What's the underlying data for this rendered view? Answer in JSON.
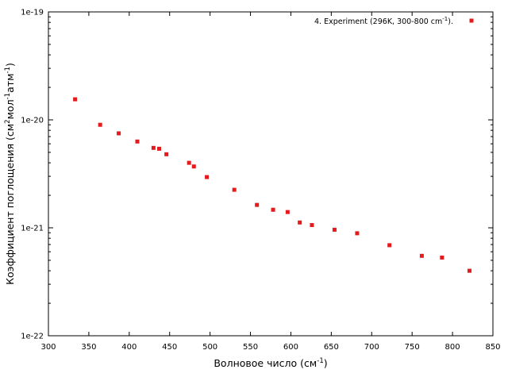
{
  "chart_data": {
    "type": "scatter",
    "title": "",
    "xlabel": "Волновое число (см",
    "xlabel_sup": "-1",
    "xlabel_tail": ")",
    "ylabel_parts": [
      "Коэффициент поглощения (см",
      "2",
      "мол",
      "-1",
      "атм",
      "-1",
      ")"
    ],
    "xlim": [
      300,
      850
    ],
    "ylim": [
      1e-22,
      1e-19
    ],
    "yscale": "log",
    "x_ticks": [
      "300",
      "350",
      "400",
      "450",
      "500",
      "550",
      "600",
      "650",
      "700",
      "750",
      "800",
      "850"
    ],
    "y_ticks": [
      "1e-22",
      "1e-21",
      "1e-20",
      "1e-19"
    ],
    "grid": false,
    "legend_position": "top-right",
    "series": [
      {
        "name": "4. Experiment (296K, 300-800 cm",
        "name_sup": "-1",
        "name_tail": ").",
        "color": "#e41a1c",
        "marker": "square",
        "x": [
          333,
          364,
          387,
          410,
          430,
          437,
          446,
          474,
          480,
          496,
          530,
          558,
          578,
          596,
          611,
          626,
          654,
          682,
          722,
          762,
          787,
          821
        ],
        "y": [
          1.55e-20,
          9e-21,
          7.5e-21,
          6.3e-21,
          5.5e-21,
          5.4e-21,
          4.8e-21,
          4e-21,
          3.7e-21,
          2.95e-21,
          2.25e-21,
          1.63e-21,
          1.47e-21,
          1.4e-21,
          1.12e-21,
          1.06e-21,
          9.6e-22,
          8.9e-22,
          6.9e-22,
          5.5e-22,
          5.3e-22,
          4e-22
        ]
      }
    ]
  }
}
